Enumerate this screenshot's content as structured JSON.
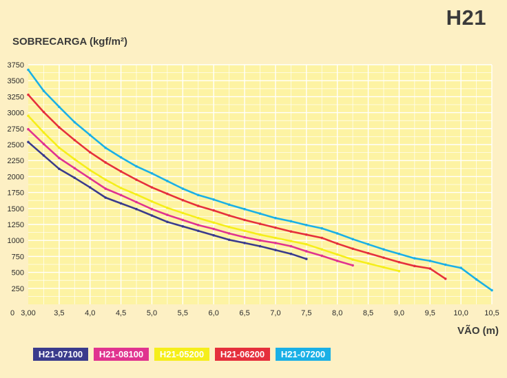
{
  "header": {
    "badge": "H21"
  },
  "chart_data": {
    "type": "line",
    "title": "H21",
    "ylabel": "SOBRECARGA (kgf/m²)",
    "xlabel": "VÃO (m)",
    "ylim": [
      0,
      3750
    ],
    "xlim": [
      3.0,
      10.5
    ],
    "grid": true,
    "legend_position": "bottom",
    "yticks": [
      "250",
      "500",
      "750",
      "1000",
      "1250",
      "1500",
      "1750",
      "2000",
      "2250",
      "2500",
      "2750",
      "3000",
      "3250",
      "3500",
      "3750"
    ],
    "ytick_values": [
      250,
      500,
      750,
      1000,
      1250,
      1500,
      1750,
      2000,
      2250,
      2500,
      2750,
      3000,
      3250,
      3500,
      3750
    ],
    "y_origin_label": "0",
    "xticks": [
      "3,00",
      "3,5",
      "4,0",
      "4,5",
      "5,0",
      "5,5",
      "6,0",
      "6,5",
      "7,0",
      "7,5",
      "8,0",
      "8,5",
      "9,0",
      "9,5",
      "10,0",
      "10,5"
    ],
    "xtick_values": [
      3.0,
      3.5,
      4.0,
      4.5,
      5.0,
      5.5,
      6.0,
      6.5,
      7.0,
      7.5,
      8.0,
      8.5,
      9.0,
      9.5,
      10.0,
      10.5
    ],
    "series": [
      {
        "name": "H21-07100",
        "color": "#3a3b8c",
        "x": [
          3.0,
          3.25,
          3.5,
          3.75,
          4.0,
          4.25,
          4.5,
          4.75,
          5.0,
          5.25,
          5.5,
          5.75,
          6.0,
          6.25,
          6.5,
          6.75,
          7.0,
          7.25,
          7.5
        ],
        "y": [
          2540,
          2330,
          2120,
          1980,
          1830,
          1670,
          1580,
          1490,
          1390,
          1290,
          1220,
          1150,
          1080,
          1010,
          960,
          910,
          850,
          790,
          710
        ]
      },
      {
        "name": "H21-08100",
        "color": "#e0338f",
        "x": [
          3.0,
          3.25,
          3.5,
          3.75,
          4.0,
          4.25,
          4.5,
          4.75,
          5.0,
          5.25,
          5.5,
          5.75,
          6.0,
          6.25,
          6.5,
          6.75,
          7.0,
          7.25,
          7.5,
          7.75,
          8.0,
          8.25
        ],
        "y": [
          2740,
          2510,
          2290,
          2130,
          1970,
          1810,
          1710,
          1600,
          1490,
          1400,
          1320,
          1240,
          1180,
          1110,
          1050,
          1000,
          960,
          910,
          830,
          760,
          680,
          610
        ]
      },
      {
        "name": "H21-05200",
        "color": "#f5ee1a",
        "x": [
          3.0,
          3.25,
          3.5,
          3.75,
          4.0,
          4.25,
          4.5,
          4.75,
          5.0,
          5.25,
          5.5,
          5.75,
          6.0,
          6.25,
          6.5,
          6.75,
          7.0,
          7.25,
          7.5,
          7.75,
          8.0,
          8.25,
          8.5,
          8.75,
          9.0
        ],
        "y": [
          2950,
          2690,
          2450,
          2270,
          2100,
          1950,
          1820,
          1720,
          1610,
          1510,
          1430,
          1350,
          1280,
          1210,
          1150,
          1090,
          1040,
          990,
          940,
          860,
          780,
          700,
          640,
          580,
          520
        ]
      },
      {
        "name": "H21-06200",
        "color": "#e5303c",
        "x": [
          3.0,
          3.25,
          3.5,
          3.75,
          4.0,
          4.25,
          4.5,
          4.75,
          5.0,
          5.25,
          5.5,
          5.75,
          6.0,
          6.25,
          6.5,
          6.75,
          7.0,
          7.25,
          7.5,
          7.75,
          8.0,
          8.25,
          8.5,
          8.75,
          9.0,
          9.25,
          9.5,
          9.75
        ],
        "y": [
          3280,
          3010,
          2770,
          2570,
          2380,
          2220,
          2080,
          1950,
          1830,
          1730,
          1630,
          1540,
          1470,
          1390,
          1320,
          1260,
          1200,
          1140,
          1090,
          1040,
          950,
          870,
          800,
          730,
          660,
          600,
          560,
          400
        ]
      },
      {
        "name": "H21-07200",
        "color": "#1ab0e6",
        "x": [
          3.0,
          3.25,
          3.5,
          3.75,
          4.0,
          4.25,
          4.5,
          4.75,
          5.0,
          5.25,
          5.5,
          5.75,
          6.0,
          6.25,
          6.5,
          6.75,
          7.0,
          7.25,
          7.5,
          7.75,
          8.0,
          8.25,
          8.5,
          8.75,
          9.0,
          9.25,
          9.5,
          9.75,
          10.0,
          10.25,
          10.5
        ],
        "y": [
          3670,
          3340,
          3090,
          2850,
          2650,
          2450,
          2300,
          2160,
          2050,
          1930,
          1810,
          1710,
          1640,
          1560,
          1490,
          1420,
          1350,
          1300,
          1240,
          1190,
          1110,
          1020,
          940,
          860,
          790,
          720,
          680,
          620,
          570,
          390,
          220
        ]
      }
    ]
  }
}
